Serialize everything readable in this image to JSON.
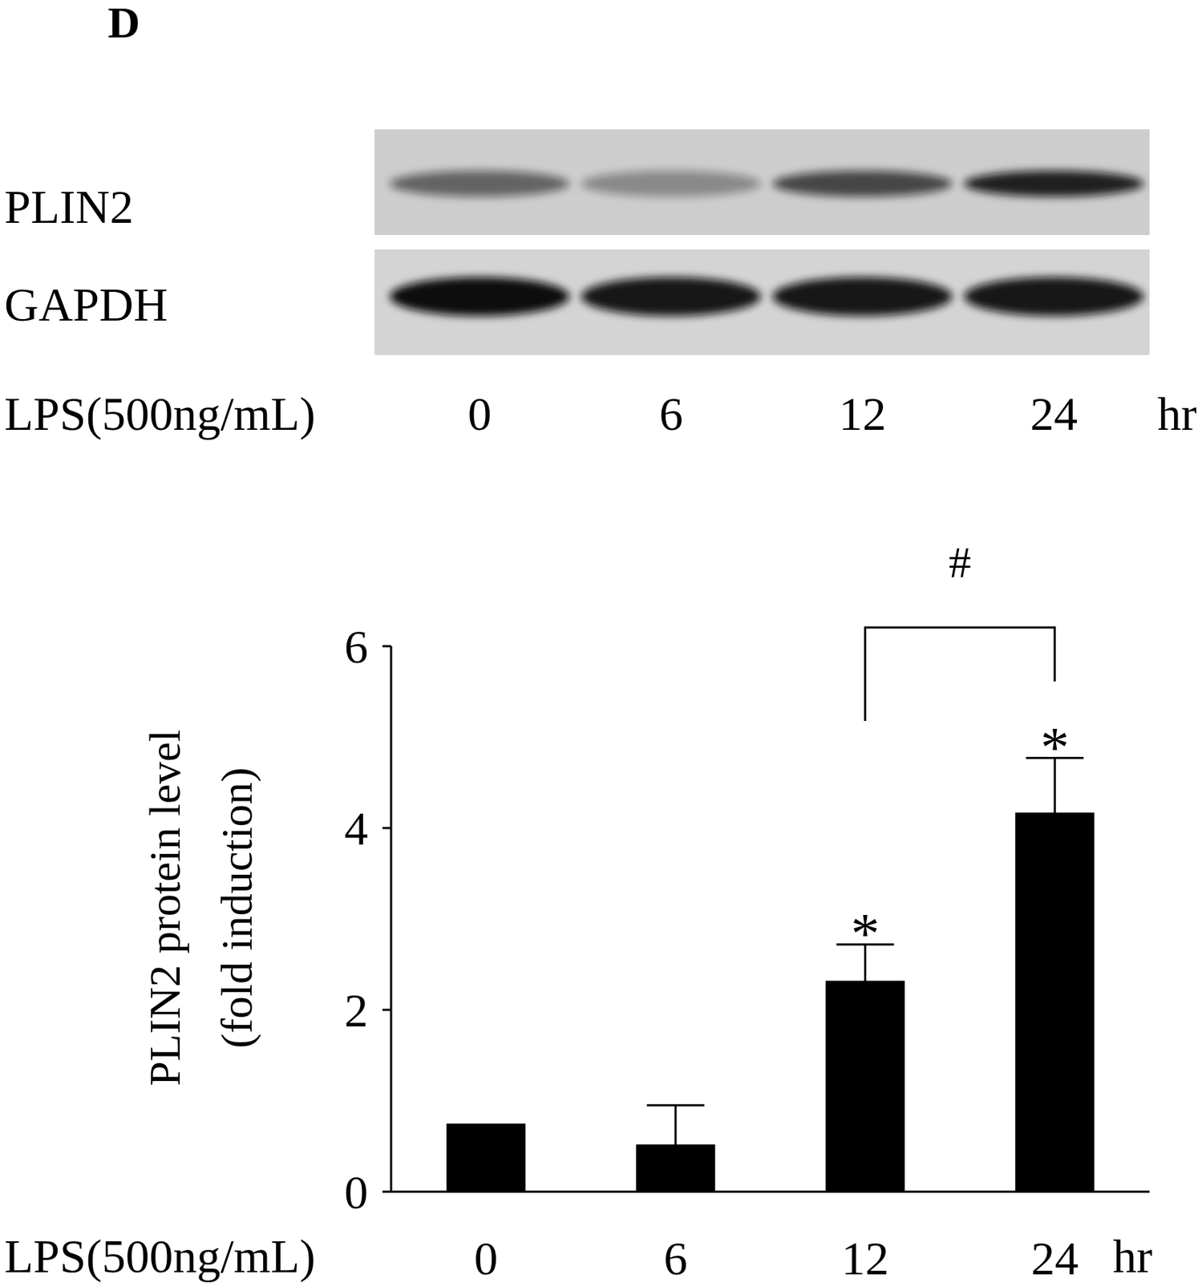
{
  "panel_label": "D",
  "blot": {
    "rows": [
      "PLIN2",
      "GAPDH"
    ],
    "treatment": "LPS(500ng/mL)",
    "lanes": [
      "0",
      "6",
      "12",
      "24"
    ],
    "unit": "hr"
  },
  "chart_data": {
    "type": "bar",
    "categories": [
      "0",
      "6",
      "12",
      "24"
    ],
    "values": [
      0.75,
      0.52,
      2.32,
      4.17
    ],
    "error": [
      0,
      0.43,
      0.4,
      0.6
    ],
    "color": "#000000",
    "ylim": [
      0,
      6
    ],
    "yticks": [
      0,
      2,
      4,
      6
    ],
    "y_label": [
      "PLIN2 protein level",
      "(fold induction)"
    ],
    "x_label": "LPS(500ng/mL)",
    "x_unit": "hr",
    "grid": false,
    "significance": [
      {
        "category": "12",
        "label": "*"
      },
      {
        "category": "24",
        "label": "*"
      }
    ],
    "bracket": {
      "from": "12",
      "to": "24",
      "label": "#"
    }
  }
}
